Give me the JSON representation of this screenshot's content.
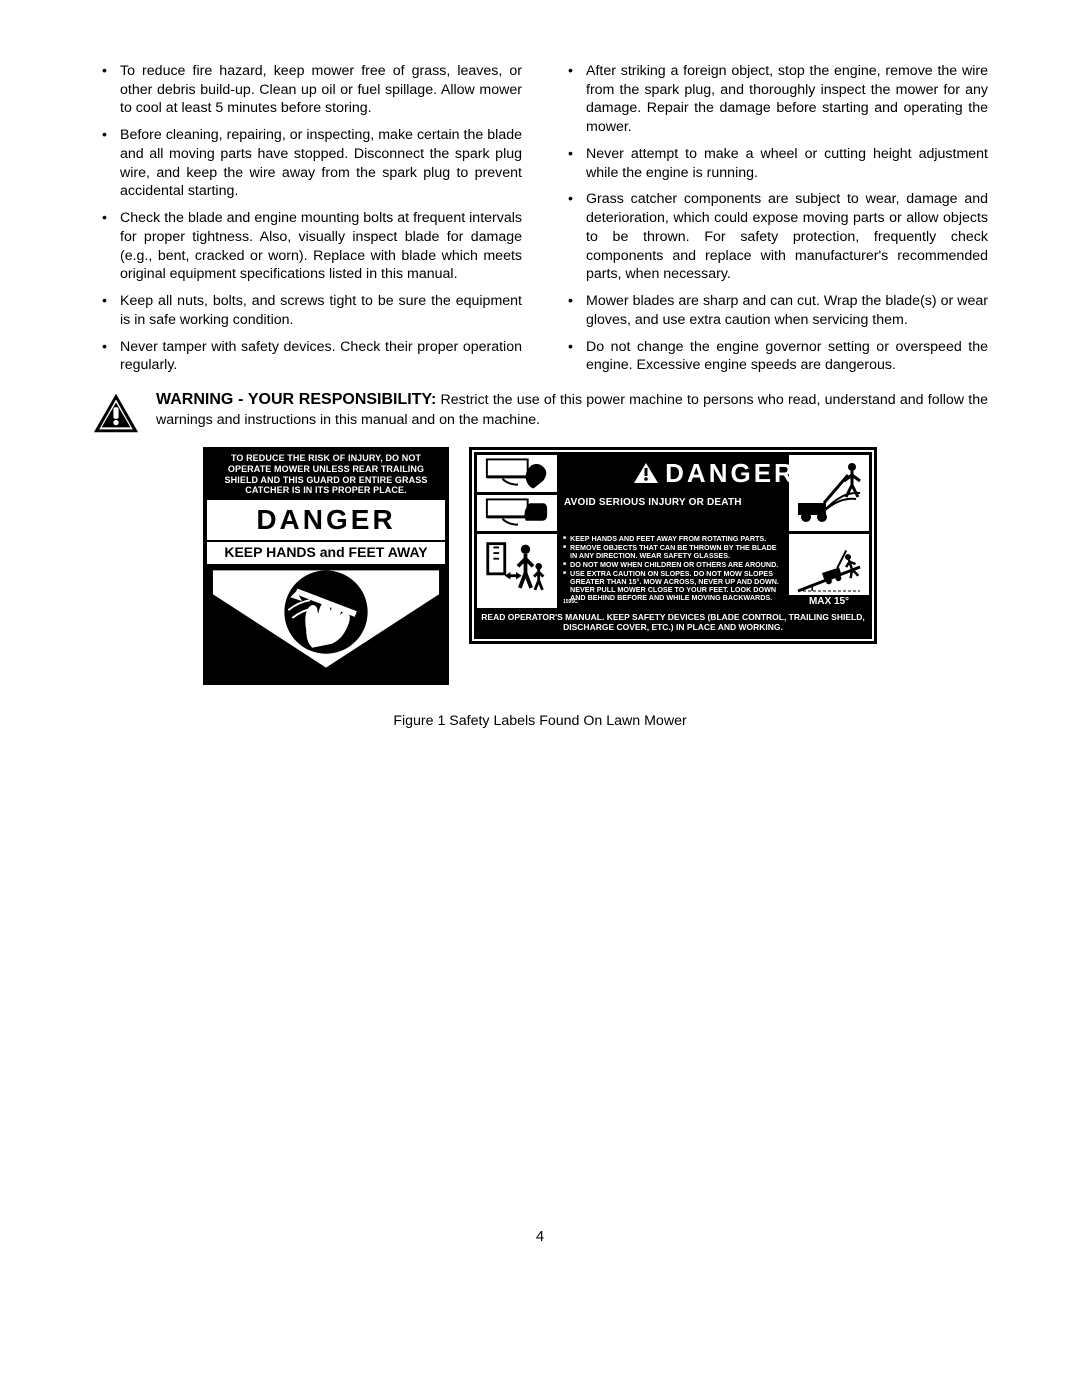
{
  "left_bullets": [
    "To reduce fire hazard, keep mower free of grass, leaves, or other debris build-up. Clean up oil or fuel spillage. Allow mower to cool at least 5 minutes before storing.",
    "Before cleaning, repairing, or inspecting, make certain the blade and all moving parts have stopped. Disconnect the spark plug wire, and keep the wire away from the spark plug to prevent accidental starting.",
    "Check the blade and engine mounting bolts at frequent intervals for proper tightness. Also, visually inspect blade for damage (e.g., bent, cracked or worn). Replace with blade which meets original equipment specifications listed in this manual.",
    "Keep all nuts, bolts, and screws tight to be sure the equipment is in safe working condition.",
    "Never tamper with safety devices. Check their proper operation regularly."
  ],
  "right_bullets": [
    "After striking a foreign object, stop the engine, remove the wire from the spark plug, and thoroughly inspect the mower for any damage. Repair the damage before starting and operating the mower.",
    "Never attempt to make a wheel or cutting height adjustment while the engine is running.",
    "Grass catcher components are subject to wear, damage and deterioration, which could expose moving parts or allow objects to be thrown. For safety protection, frequently check components and replace with manufacturer's recommended parts, when necessary.",
    "Mower blades are sharp and can cut. Wrap the blade(s) or wear gloves, and use extra caution when servicing them.",
    "Do not change the engine governor setting or overspeed the engine. Excessive engine speeds are dangerous."
  ],
  "warning": {
    "lead": "WARNING - YOUR RESPONSIBILITY:",
    "body": " Restrict the use of this power machine to persons who read, understand and follow the warnings and instructions in this manual and on the machine."
  },
  "label1": {
    "top_line": "TO REDUCE THE RISK OF INJURY, DO NOT OPERATE MOWER UNLESS REAR TRAILING SHIELD AND THIS GUARD OR ENTIRE GRASS CATCHER IS IN ITS PROPER PLACE.",
    "danger": "DANGER",
    "keep": "KEEP HANDS and FEET AWAY"
  },
  "label2": {
    "danger": "DANGER",
    "subtitle": "AVOID SERIOUS INJURY OR DEATH",
    "bullets": [
      "KEEP HANDS AND FEET AWAY FROM ROTATING PARTS.",
      "REMOVE OBJECTS THAT CAN BE THROWN BY THE BLADE IN ANY DIRECTION. WEAR SAFETY GLASSES.",
      "DO NOT MOW WHEN CHILDREN OR OTHERS ARE AROUND.",
      "USE EXTRA CAUTION ON SLOPES. DO NOT MOW SLOPES GREATER THAN 15°. MOW ACROSS, NEVER UP AND DOWN. NEVER PULL MOWER CLOSE TO YOUR FEET. LOOK DOWN AND BEHIND BEFORE AND WHILE MOVING BACKWARDS."
    ],
    "code": "1595C",
    "max": "MAX 15°",
    "footer": "READ OPERATOR'S MANUAL. KEEP SAFETY DEVICES (BLADE CONTROL, TRAILING SHIELD, DISCHARGE COVER, ETC.) IN PLACE AND WORKING."
  },
  "figure_caption": "Figure 1  Safety Labels Found On Lawn Mower",
  "page_number": "4",
  "colors": {
    "black": "#000000",
    "white": "#ffffff"
  }
}
